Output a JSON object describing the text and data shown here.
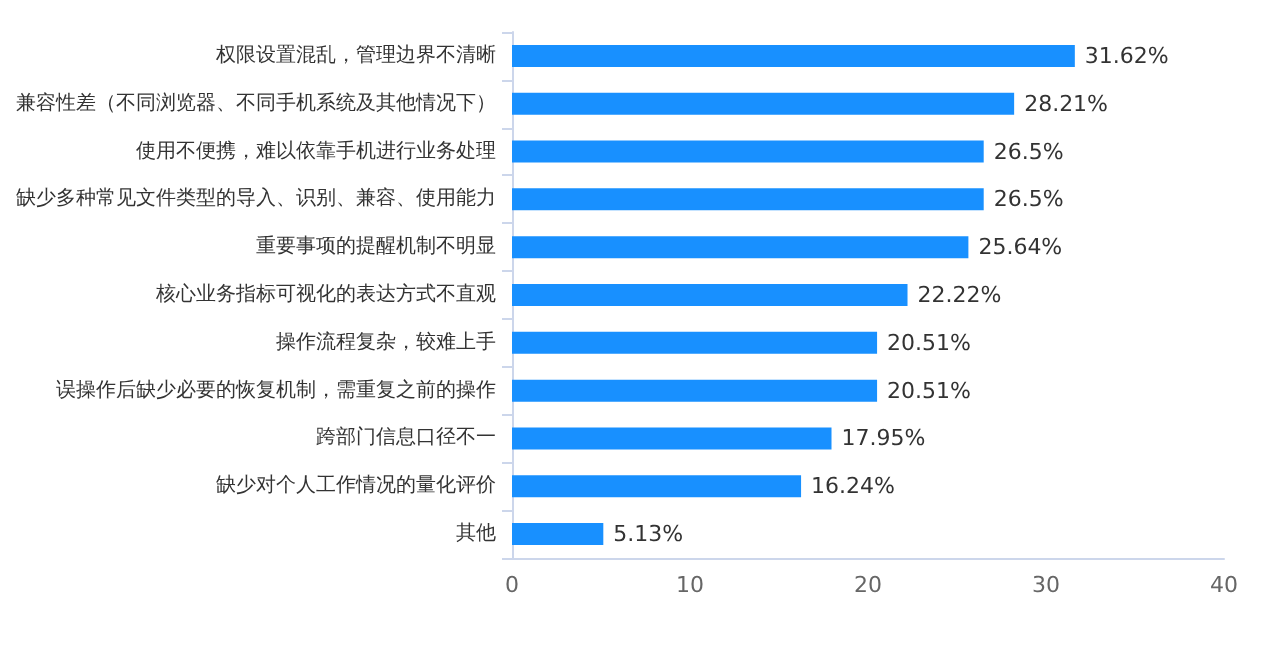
{
  "chart_data": {
    "type": "bar",
    "orientation": "horizontal",
    "categories": [
      "权限设置混乱，管理边界不清晰",
      "兼容性差（不同浏览器、不同手机系统及其他情况下）",
      "使用不便携，难以依靠手机进行业务处理",
      "缺少多种常见文件类型的导入、识别、兼容、使用能力",
      "重要事项的提醒机制不明显",
      "核心业务指标可视化的表达方式不直观",
      "操作流程复杂，较难上手",
      "误操作后缺少必要的恢复机制，需重复之前的操作",
      "跨部门信息口径不一",
      "缺少对个人工作情况的量化评价",
      "其他"
    ],
    "values": [
      31.62,
      28.21,
      26.5,
      26.5,
      25.64,
      22.22,
      20.51,
      20.51,
      17.95,
      16.24,
      5.13
    ],
    "value_labels": [
      "31.62%",
      "28.21%",
      "26.5%",
      "26.5%",
      "25.64%",
      "22.22%",
      "20.51%",
      "20.51%",
      "17.95%",
      "16.24%",
      "5.13%"
    ],
    "color": "#1890ff",
    "xlim": [
      0,
      40
    ],
    "xticks": [
      0,
      10,
      20,
      30,
      40
    ]
  }
}
